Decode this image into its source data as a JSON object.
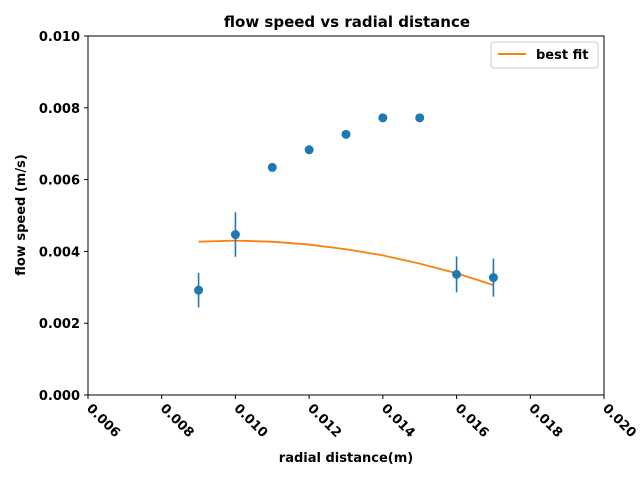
{
  "chart_data": {
    "type": "scatter",
    "title": "flow speed vs radial distance",
    "xlabel": "radial distance(m)",
    "ylabel": "flow speed (m/s)",
    "xlim": [
      0.006,
      0.02
    ],
    "ylim": [
      0.0,
      0.01
    ],
    "x_ticks": [
      "0.006",
      "0.008",
      "0.010",
      "0.012",
      "0.014",
      "0.016",
      "0.018",
      "0.020"
    ],
    "y_ticks": [
      "0.000",
      "0.002",
      "0.004",
      "0.006",
      "0.008",
      "0.010"
    ],
    "grid": false,
    "legend_position": "top-right",
    "colors": {
      "points": "#1f77b4",
      "fit": "#ff7f0e"
    },
    "points": [
      {
        "x": 0.009,
        "y": 0.00292,
        "err": 0.00048
      },
      {
        "x": 0.01,
        "y": 0.00447,
        "err": 0.00062
      },
      {
        "x": 0.011,
        "y": 0.00634,
        "err": 4e-05
      },
      {
        "x": 0.012,
        "y": 0.00683,
        "err": 6e-05
      },
      {
        "x": 0.013,
        "y": 0.00726,
        "err": 4e-05
      },
      {
        "x": 0.014,
        "y": 0.00772,
        "err": 0.0001
      },
      {
        "x": 0.015,
        "y": 0.00772,
        "err": 0.00012
      },
      {
        "x": 0.016,
        "y": 0.00336,
        "err": 0.0005
      },
      {
        "x": 0.017,
        "y": 0.00327,
        "err": 0.00053
      }
    ],
    "series": [
      {
        "name": "best fit",
        "x": [
          0.009,
          0.01,
          0.011,
          0.012,
          0.013,
          0.014,
          0.015,
          0.016,
          0.017
        ],
        "y": [
          0.00427,
          0.0043,
          0.00427,
          0.00419,
          0.00406,
          0.00389,
          0.00366,
          0.00339,
          0.00306
        ]
      }
    ]
  }
}
